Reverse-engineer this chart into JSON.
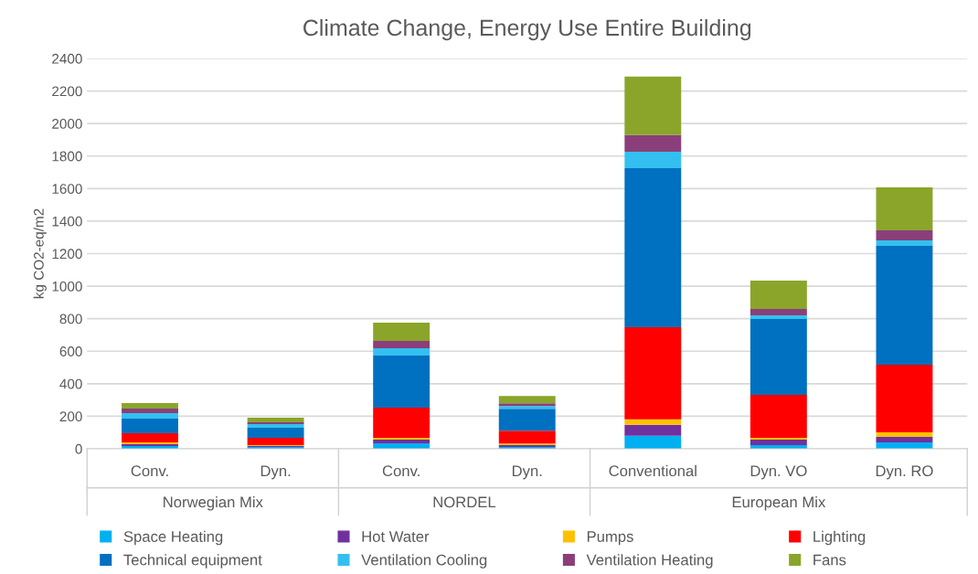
{
  "chart_data": {
    "type": "bar",
    "stacked": true,
    "title": "Climate Change, Energy Use Entire Building",
    "ylabel": "kg CO2-eq/m2",
    "categories": [
      "Conv.",
      "Dyn.",
      "Conv.",
      "Dyn.",
      "Conventional",
      "Dyn. VO",
      "Dyn. RO"
    ],
    "annotations": [
      "Norwegian Mix",
      "NORDEL",
      "European Mix"
    ],
    "series": [
      {
        "name": "Space Heating",
        "color": "#00b0f0",
        "values": [
          17,
          11,
          34,
          11,
          80,
          22,
          39
        ]
      },
      {
        "name": "Hot Water",
        "color": "#7030a0",
        "values": [
          11,
          6,
          22,
          11,
          67,
          34,
          34
        ]
      },
      {
        "name": "Pumps",
        "color": "#ffc000",
        "values": [
          11,
          5,
          11,
          11,
          34,
          11,
          28
        ]
      },
      {
        "name": "Lighting",
        "color": "#ff0000",
        "values": [
          57,
          45,
          186,
          78,
          567,
          265,
          416
        ]
      },
      {
        "name": "Technical equipment",
        "color": "#0070c0",
        "values": [
          89,
          62,
          320,
          135,
          978,
          466,
          731
        ]
      },
      {
        "name": "Ventilation Cooling",
        "color": "#33c0f0",
        "values": [
          34,
          23,
          45,
          17,
          101,
          22,
          33
        ]
      },
      {
        "name": "Ventilation Heating",
        "color": "#8a3f7a",
        "values": [
          28,
          11,
          45,
          17,
          102,
          40,
          62
        ]
      },
      {
        "name": "Fans",
        "color": "#8aa52a",
        "values": [
          34,
          28,
          113,
          45,
          360,
          174,
          264
        ]
      }
    ],
    "ylim": [
      0,
      2400
    ],
    "yticks": [
      0,
      200,
      400,
      600,
      800,
      1000,
      1200,
      1400,
      1600,
      1800,
      2000,
      2200,
      2400
    ],
    "grid": "y",
    "legend": "bottom"
  }
}
